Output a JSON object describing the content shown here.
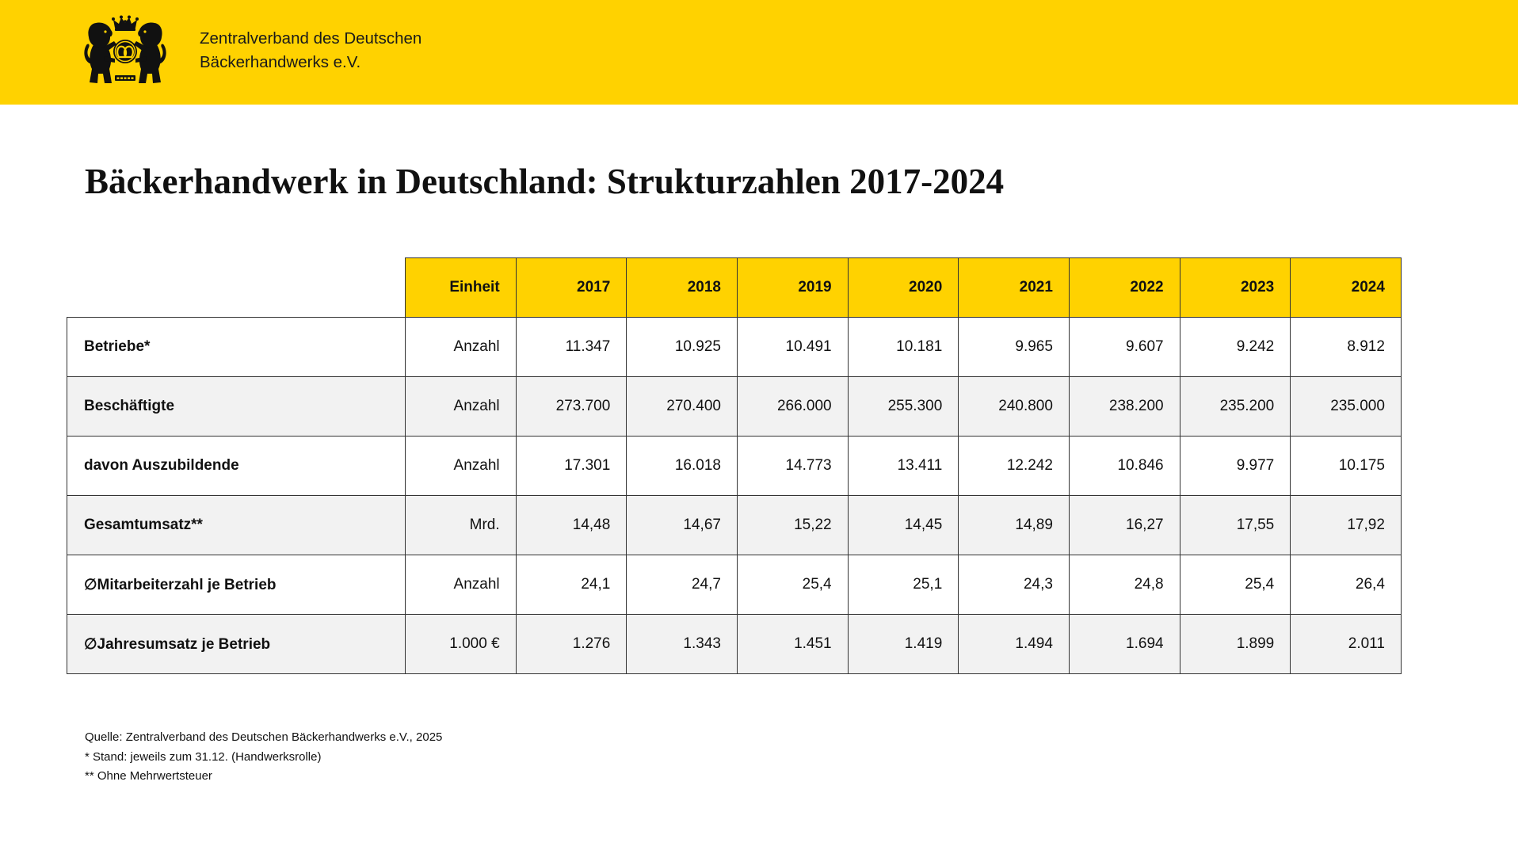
{
  "colors": {
    "header_band": "#FFD200",
    "table_header": "#FFD200",
    "alternate_row": "#F2F2F2",
    "grid_line": "#333333"
  },
  "header": {
    "logo_icon": "bakers-guild-crest-icon",
    "org_name_line1": "Zentralverband des Deutschen",
    "org_name_line2": "Bäckerhandwerks e.V."
  },
  "chart_data": {
    "type": "table",
    "title": "Bäckerhandwerk in Deutschland: Strukturzahlen 2017-2024",
    "columns": [
      "Einheit",
      "2017",
      "2018",
      "2019",
      "2020",
      "2021",
      "2022",
      "2023",
      "2024"
    ],
    "rows": [
      {
        "label": "Betriebe*",
        "unit": "Anzahl",
        "values": [
          "11.347",
          "10.925",
          "10.491",
          "10.181",
          "9.965",
          "9.607",
          "9.242",
          "8.912"
        ]
      },
      {
        "label": "Beschäftigte",
        "unit": "Anzahl",
        "values": [
          "273.700",
          "270.400",
          "266.000",
          "255.300",
          "240.800",
          "238.200",
          "235.200",
          "235.000"
        ]
      },
      {
        "label": "davon Auszubildende",
        "unit": "Anzahl",
        "values": [
          "17.301",
          "16.018",
          "14.773",
          "13.411",
          "12.242",
          "10.846",
          "9.977",
          "10.175"
        ]
      },
      {
        "label": "Gesamtumsatz**",
        "unit": "Mrd.",
        "values": [
          "14,48",
          "14,67",
          "15,22",
          "14,45",
          "14,89",
          "16,27",
          "17,55",
          "17,92"
        ]
      },
      {
        "label": "∅Mitarbeiterzahl je Betrieb",
        "unit": "Anzahl",
        "values": [
          "24,1",
          "24,7",
          "25,4",
          "25,1",
          "24,3",
          "24,8",
          "25,4",
          "26,4"
        ]
      },
      {
        "label": "∅Jahresumsatz je Betrieb",
        "unit": "1.000 €",
        "values": [
          "1.276",
          "1.343",
          "1.451",
          "1.419",
          "1.494",
          "1.694",
          "1.899",
          "2.011"
        ]
      }
    ]
  },
  "footnotes": [
    "Quelle: Zentralverband des Deutschen Bäckerhandwerks e.V., 2025",
    "* Stand: jeweils zum 31.12. (Handwerksrolle)",
    "** Ohne Mehrwertsteuer"
  ]
}
